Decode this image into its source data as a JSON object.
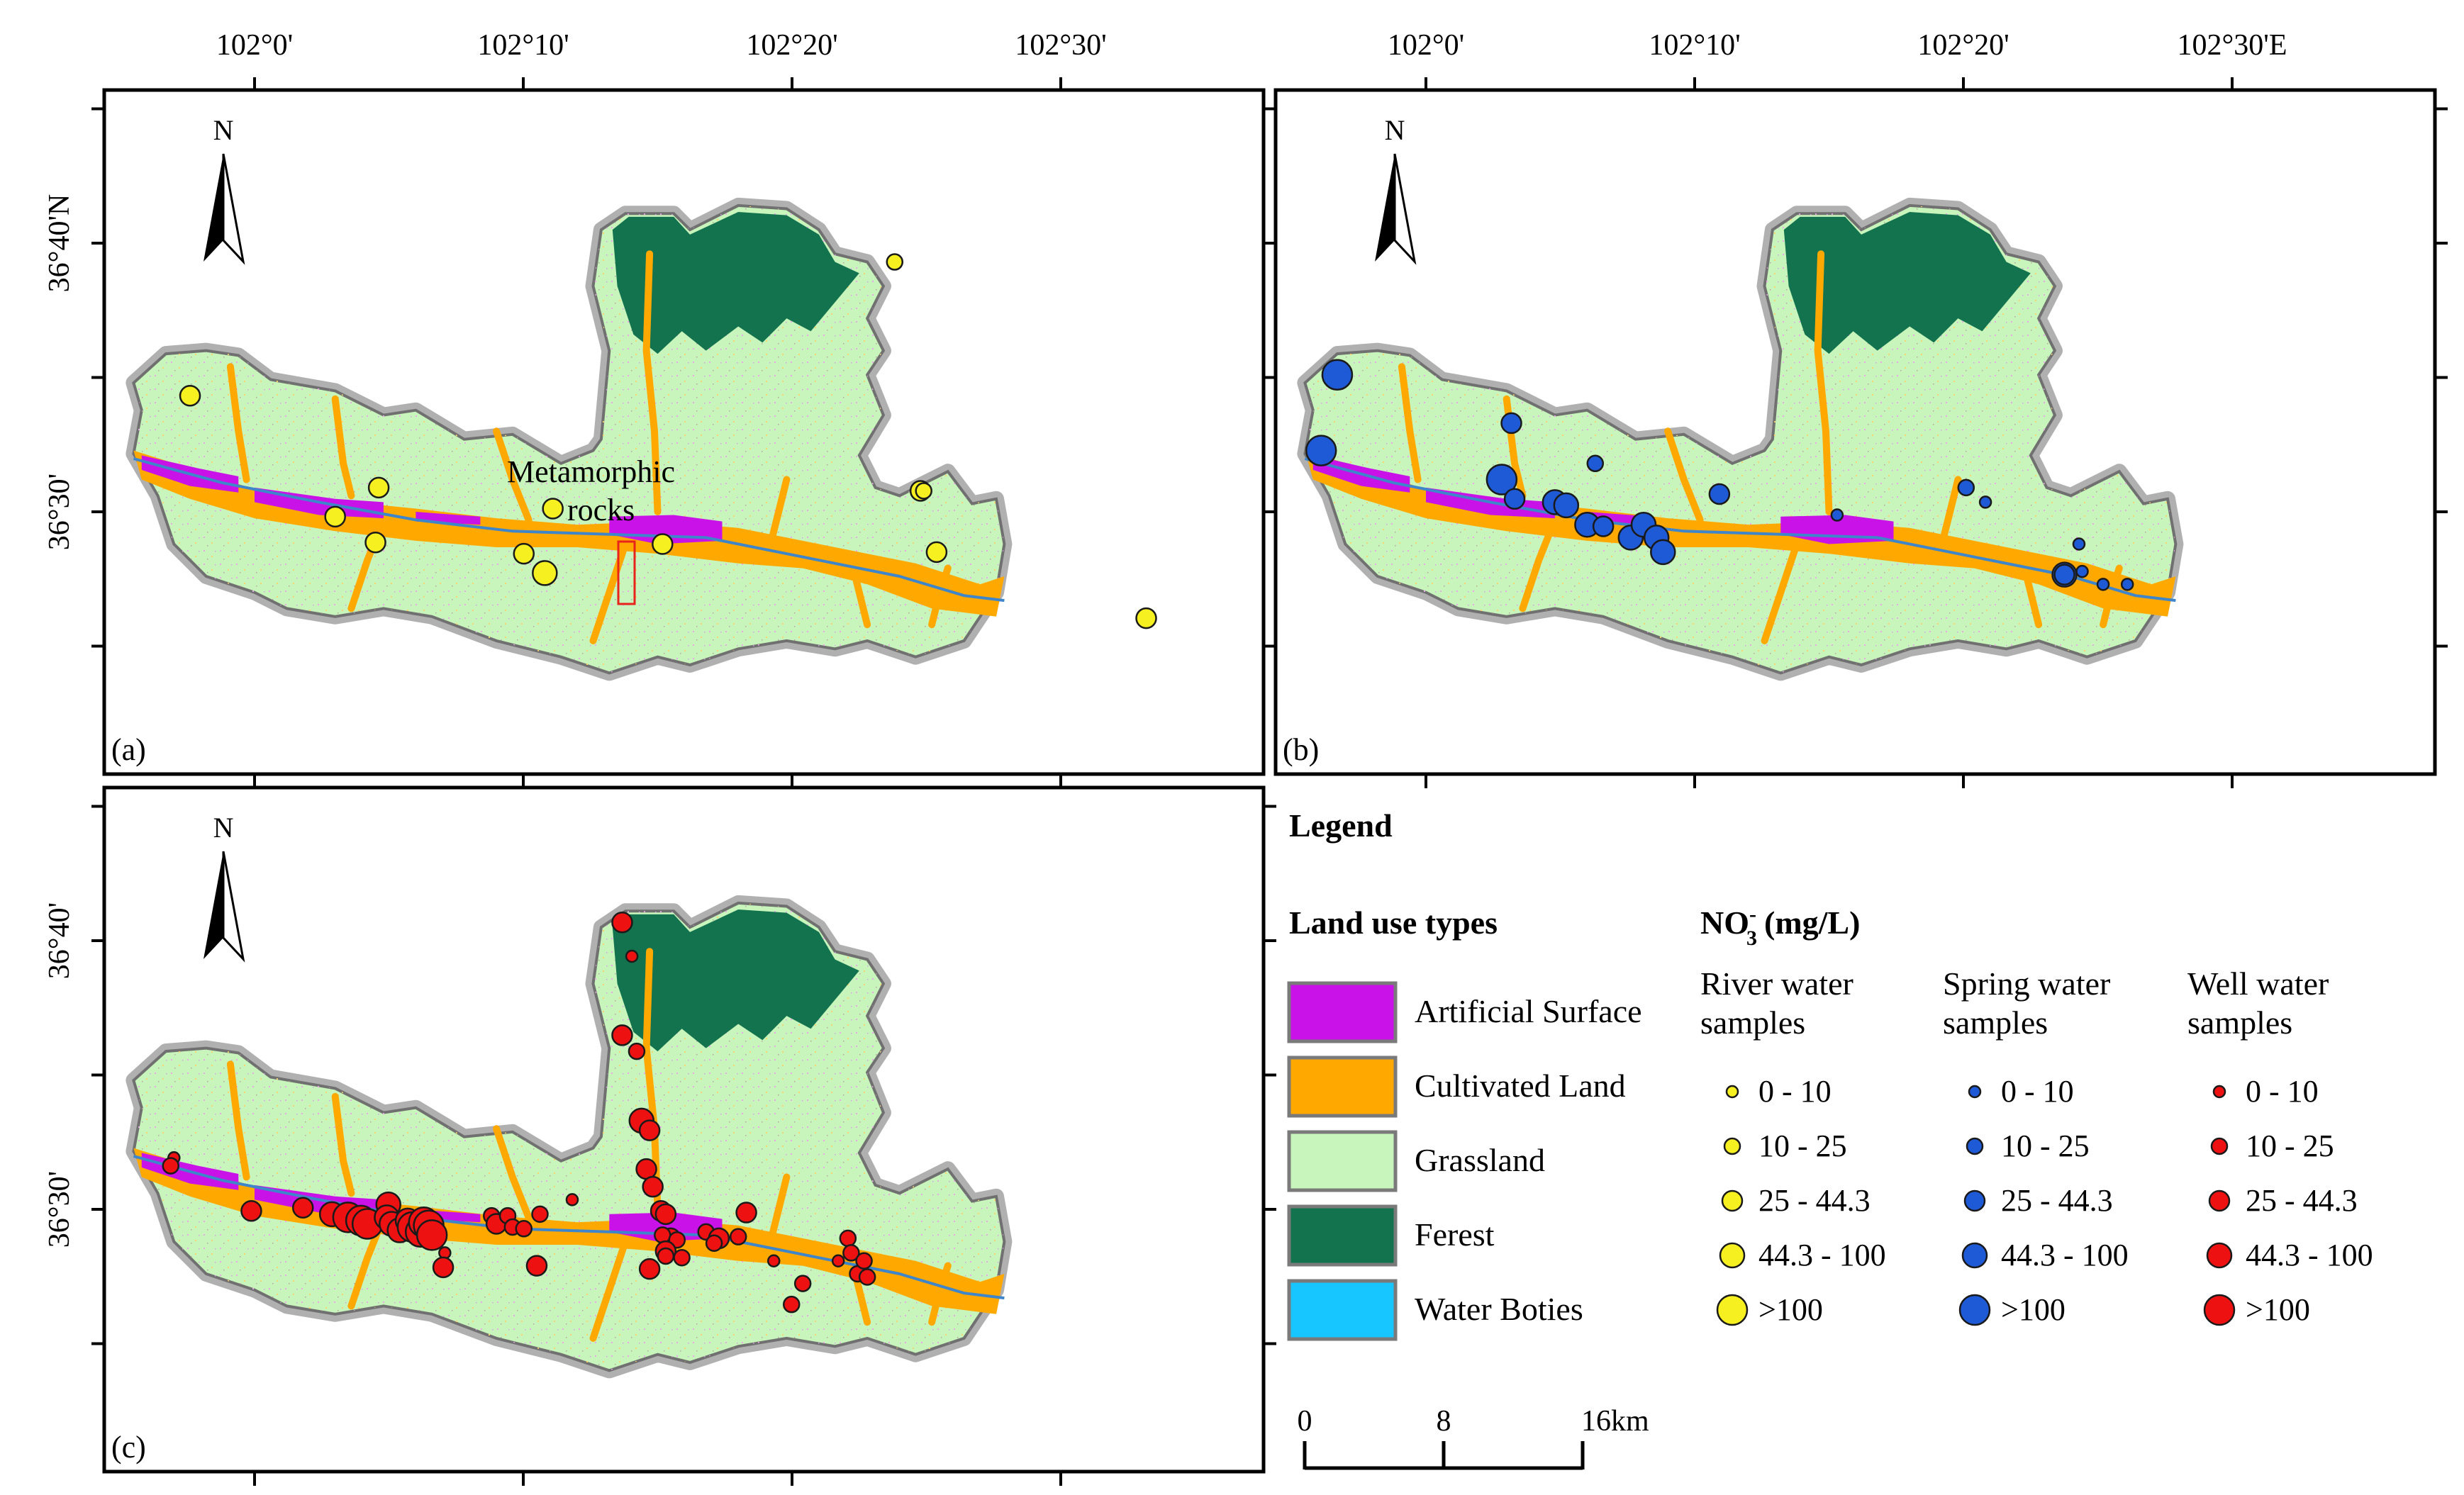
{
  "colors": {
    "artificial": "#c812e8",
    "cultivated": "#ffa800",
    "grassland": "#c8f5bb",
    "forest": "#13734f",
    "water": "#17c6ff",
    "border": "#8e8e8e",
    "river_pt": "#f7f020",
    "spring_pt": "#1e59d6",
    "well_pt": "#ee1111"
  },
  "maps": [
    {
      "id": "a",
      "label": "(a)",
      "top_ticks": [
        "102°0'",
        "102°10'",
        "102°20'",
        "102°30'"
      ],
      "left_ticks": [
        "36°40'N",
        "36°30'"
      ],
      "annotation_line1": "Metamorphic",
      "annotation_line2": "rocks"
    },
    {
      "id": "b",
      "label": "(b)",
      "top_ticks": [
        "102°0'",
        "102°10'",
        "102°20'",
        "102°30'E"
      ]
    },
    {
      "id": "c",
      "label": "(c)",
      "left_ticks": [
        "36°40'",
        "36°30'"
      ]
    }
  ],
  "north_label": "N",
  "legend": {
    "title": "Legend",
    "landuse_title": "Land use types",
    "landuse": [
      {
        "label": "Artificial Surface",
        "color_key": "artificial"
      },
      {
        "label": "Cultivated Land",
        "color_key": "cultivated"
      },
      {
        "label": "Grassland",
        "color_key": "grassland"
      },
      {
        "label": "Ferest",
        "color_key": "forest"
      },
      {
        "label": "Water Boties",
        "color_key": "water"
      }
    ],
    "no3_main": "NO",
    "no3_sub": "3",
    "no3_sup": "-",
    "no3_unit": "(mg/L)",
    "groups": [
      {
        "title1": "River water",
        "title2": "samples",
        "color_key": "river_pt"
      },
      {
        "title1": "Spring water",
        "title2": "samples",
        "color_key": "spring_pt"
      },
      {
        "title1": "Well water",
        "title2": "samples",
        "color_key": "well_pt"
      }
    ],
    "classes": [
      "0 - 10",
      "10 - 25",
      "25 - 44.3",
      "44.3 - 100",
      ">100"
    ],
    "scale": {
      "labels": [
        "0",
        "8",
        "16km"
      ]
    }
  },
  "samples": {
    "river": [
      {
        "lon": 101.96,
        "lat": 36.572,
        "cls": 2
      },
      {
        "lon": 102.077,
        "lat": 36.515,
        "cls": 2
      },
      {
        "lon": 102.05,
        "lat": 36.497,
        "cls": 2
      },
      {
        "lon": 102.075,
        "lat": 36.481,
        "cls": 2
      },
      {
        "lon": 102.185,
        "lat": 36.502,
        "cls": 2
      },
      {
        "lon": 102.167,
        "lat": 36.474,
        "cls": 2
      },
      {
        "lon": 102.18,
        "lat": 36.462,
        "cls": 3
      },
      {
        "lon": 102.253,
        "lat": 36.48,
        "cls": 2
      },
      {
        "lon": 102.397,
        "lat": 36.655,
        "cls": 1
      },
      {
        "lon": 102.413,
        "lat": 36.513,
        "cls": 2
      },
      {
        "lon": 102.415,
        "lat": 36.513,
        "cls": 1
      },
      {
        "lon": 102.423,
        "lat": 36.475,
        "cls": 2
      },
      {
        "lon": 102.553,
        "lat": 36.434,
        "cls": 2
      }
    ],
    "spring": [
      {
        "lon": 101.945,
        "lat": 36.585,
        "cls": 4
      },
      {
        "lon": 101.935,
        "lat": 36.538,
        "cls": 4
      },
      {
        "lon": 102.053,
        "lat": 36.555,
        "cls": 2
      },
      {
        "lon": 102.047,
        "lat": 36.52,
        "cls": 4
      },
      {
        "lon": 102.055,
        "lat": 36.508,
        "cls": 2
      },
      {
        "lon": 102.08,
        "lat": 36.506,
        "cls": 3
      },
      {
        "lon": 102.087,
        "lat": 36.504,
        "cls": 3
      },
      {
        "lon": 102.105,
        "lat": 36.53,
        "cls": 1
      },
      {
        "lon": 102.1,
        "lat": 36.492,
        "cls": 3
      },
      {
        "lon": 102.11,
        "lat": 36.491,
        "cls": 2
      },
      {
        "lon": 102.127,
        "lat": 36.484,
        "cls": 3
      },
      {
        "lon": 102.135,
        "lat": 36.492,
        "cls": 3
      },
      {
        "lon": 102.143,
        "lat": 36.484,
        "cls": 3
      },
      {
        "lon": 102.147,
        "lat": 36.475,
        "cls": 3
      },
      {
        "lon": 102.182,
        "lat": 36.511,
        "cls": 2
      },
      {
        "lon": 102.255,
        "lat": 36.498,
        "cls": 0
      },
      {
        "lon": 102.335,
        "lat": 36.515,
        "cls": 1
      },
      {
        "lon": 102.347,
        "lat": 36.506,
        "cls": 0
      },
      {
        "lon": 102.405,
        "lat": 36.48,
        "cls": 0
      },
      {
        "lon": 102.396,
        "lat": 36.461,
        "cls": 3
      },
      {
        "lon": 102.396,
        "lat": 36.461,
        "cls": 2
      },
      {
        "lon": 102.407,
        "lat": 36.463,
        "cls": 0
      },
      {
        "lon": 102.42,
        "lat": 36.455,
        "cls": 0
      },
      {
        "lon": 102.435,
        "lat": 36.455,
        "cls": 0
      }
    ],
    "well": [
      {
        "lon": 101.95,
        "lat": 36.532,
        "cls": 0
      },
      {
        "lon": 101.948,
        "lat": 36.527,
        "cls": 1
      },
      {
        "lon": 101.998,
        "lat": 36.499,
        "cls": 2
      },
      {
        "lon": 102.03,
        "lat": 36.501,
        "cls": 2
      },
      {
        "lon": 102.048,
        "lat": 36.497,
        "cls": 3
      },
      {
        "lon": 102.058,
        "lat": 36.495,
        "cls": 4
      },
      {
        "lon": 102.066,
        "lat": 36.493,
        "cls": 4
      },
      {
        "lon": 102.07,
        "lat": 36.491,
        "cls": 4
      },
      {
        "lon": 102.083,
        "lat": 36.503,
        "cls": 3
      },
      {
        "lon": 102.082,
        "lat": 36.495,
        "cls": 3
      },
      {
        "lon": 102.085,
        "lat": 36.491,
        "cls": 3
      },
      {
        "lon": 102.09,
        "lat": 36.487,
        "cls": 3
      },
      {
        "lon": 102.095,
        "lat": 36.493,
        "cls": 3
      },
      {
        "lon": 102.098,
        "lat": 36.489,
        "cls": 4
      },
      {
        "lon": 102.103,
        "lat": 36.486,
        "cls": 4
      },
      {
        "lon": 102.105,
        "lat": 36.492,
        "cls": 4
      },
      {
        "lon": 102.108,
        "lat": 36.49,
        "cls": 4
      },
      {
        "lon": 102.11,
        "lat": 36.484,
        "cls": 4
      },
      {
        "lon": 102.118,
        "lat": 36.473,
        "cls": 0
      },
      {
        "lon": 102.117,
        "lat": 36.464,
        "cls": 2
      },
      {
        "lon": 102.147,
        "lat": 36.496,
        "cls": 1
      },
      {
        "lon": 102.15,
        "lat": 36.491,
        "cls": 2
      },
      {
        "lon": 102.157,
        "lat": 36.496,
        "cls": 1
      },
      {
        "lon": 102.16,
        "lat": 36.489,
        "cls": 1
      },
      {
        "lon": 102.167,
        "lat": 36.488,
        "cls": 1
      },
      {
        "lon": 102.177,
        "lat": 36.497,
        "cls": 1
      },
      {
        "lon": 102.197,
        "lat": 36.506,
        "cls": 0
      },
      {
        "lon": 102.175,
        "lat": 36.465,
        "cls": 2
      },
      {
        "lon": 102.228,
        "lat": 36.678,
        "cls": 2
      },
      {
        "lon": 102.234,
        "lat": 36.657,
        "cls": 0
      },
      {
        "lon": 102.228,
        "lat": 36.608,
        "cls": 2
      },
      {
        "lon": 102.237,
        "lat": 36.598,
        "cls": 1
      },
      {
        "lon": 102.24,
        "lat": 36.555,
        "cls": 3
      },
      {
        "lon": 102.245,
        "lat": 36.549,
        "cls": 2
      },
      {
        "lon": 102.243,
        "lat": 36.525,
        "cls": 2
      },
      {
        "lon": 102.247,
        "lat": 36.514,
        "cls": 2
      },
      {
        "lon": 102.252,
        "lat": 36.499,
        "cls": 2
      },
      {
        "lon": 102.255,
        "lat": 36.497,
        "cls": 2
      },
      {
        "lon": 102.258,
        "lat": 36.482,
        "cls": 2
      },
      {
        "lon": 102.253,
        "lat": 36.484,
        "cls": 1
      },
      {
        "lon": 102.262,
        "lat": 36.481,
        "cls": 1
      },
      {
        "lon": 102.255,
        "lat": 36.474,
        "cls": 2
      },
      {
        "lon": 102.265,
        "lat": 36.47,
        "cls": 1
      },
      {
        "lon": 102.28,
        "lat": 36.486,
        "cls": 1
      },
      {
        "lon": 102.288,
        "lat": 36.482,
        "cls": 2
      },
      {
        "lon": 102.285,
        "lat": 36.479,
        "cls": 1
      },
      {
        "lon": 102.3,
        "lat": 36.483,
        "cls": 1
      },
      {
        "lon": 102.305,
        "lat": 36.498,
        "cls": 2
      },
      {
        "lon": 102.322,
        "lat": 36.468,
        "cls": 0
      },
      {
        "lon": 102.34,
        "lat": 36.454,
        "cls": 1
      },
      {
        "lon": 102.362,
        "lat": 36.468,
        "cls": 0
      },
      {
        "lon": 102.368,
        "lat": 36.482,
        "cls": 1
      },
      {
        "lon": 102.37,
        "lat": 36.473,
        "cls": 1
      },
      {
        "lon": 102.374,
        "lat": 36.46,
        "cls": 1
      },
      {
        "lon": 102.378,
        "lat": 36.468,
        "cls": 1
      },
      {
        "lon": 102.38,
        "lat": 36.458,
        "cls": 1
      },
      {
        "lon": 102.333,
        "lat": 36.441,
        "cls": 1
      },
      {
        "lon": 102.245,
        "lat": 36.463,
        "cls": 2
      },
      {
        "lon": 102.255,
        "lat": 36.471,
        "cls": 1
      }
    ]
  }
}
